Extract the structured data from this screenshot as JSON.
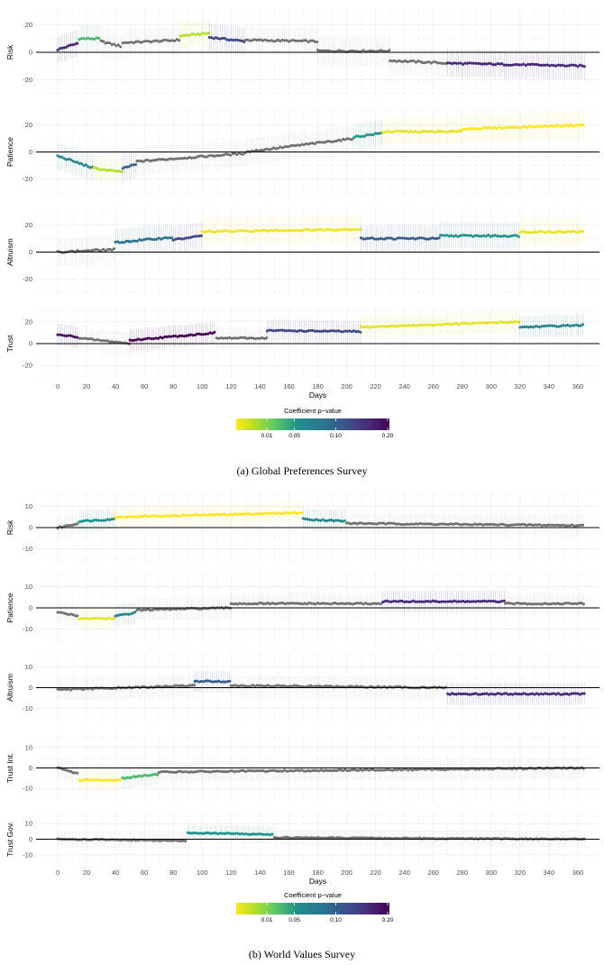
{
  "chart_data": [
    {
      "type": "scatter",
      "caption": "(a) Global Preferences Survey",
      "xlabel": "Days",
      "xticks": [
        0,
        20,
        40,
        60,
        80,
        100,
        120,
        140,
        160,
        180,
        200,
        220,
        240,
        260,
        280,
        300,
        320,
        340,
        360
      ],
      "xlim": [
        -15,
        375
      ],
      "colorbar": {
        "title": "Coefficient p−value",
        "ticks": [
          "0.01",
          "0.05",
          "0.10",
          "0.20"
        ],
        "tick_values": [
          0.01,
          0.05,
          0.1,
          0.2
        ],
        "significant_colors": [
          "#fde725",
          "#21918c",
          "#3b528b",
          "#440154"
        ],
        "non_significant_color": "#7a7a7a"
      },
      "panels": [
        {
          "ylabel": "Risk",
          "ylim": [
            -33,
            33
          ],
          "yticks": [
            -20,
            0,
            20
          ],
          "segments": [
            {
              "x0": 0,
              "x1": 15,
              "y0": 2,
              "y1": 7,
              "p": 0.15
            },
            {
              "x0": 15,
              "x1": 30,
              "y0": 10,
              "y1": 10,
              "p": 0.04
            },
            {
              "x0": 30,
              "x1": 45,
              "y0": 8,
              "y1": 4,
              "p": 0.25
            },
            {
              "x0": 45,
              "x1": 85,
              "y0": 7,
              "y1": 9,
              "p": 0.25
            },
            {
              "x0": 85,
              "x1": 105,
              "y0": 12,
              "y1": 14,
              "p": 0.02
            },
            {
              "x0": 105,
              "x1": 130,
              "y0": 11,
              "y1": 8,
              "p": 0.12
            },
            {
              "x0": 130,
              "x1": 180,
              "y0": 9,
              "y1": 8,
              "p": 0.25
            },
            {
              "x0": 180,
              "x1": 230,
              "y0": 1,
              "y1": 1,
              "p": 0.25
            },
            {
              "x0": 230,
              "x1": 270,
              "y0": -6,
              "y1": -8,
              "p": 0.25
            },
            {
              "x0": 270,
              "x1": 365,
              "y0": -8,
              "y1": -10,
              "p": 0.15
            }
          ]
        },
        {
          "ylabel": "Patience",
          "ylim": [
            -33,
            33
          ],
          "yticks": [
            -20,
            0,
            20
          ],
          "segments": [
            {
              "x0": 0,
              "x1": 25,
              "y0": -3,
              "y1": -12,
              "p": 0.06
            },
            {
              "x0": 25,
              "x1": 45,
              "y0": -12,
              "y1": -15,
              "p": 0.02
            },
            {
              "x0": 45,
              "x1": 55,
              "y0": -12,
              "y1": -9,
              "p": 0.1
            },
            {
              "x0": 55,
              "x1": 130,
              "y0": -7,
              "y1": -1,
              "p": 0.25
            },
            {
              "x0": 130,
              "x1": 205,
              "y0": 0,
              "y1": 10,
              "p": 0.25
            },
            {
              "x0": 205,
              "x1": 225,
              "y0": 11,
              "y1": 14,
              "p": 0.05
            },
            {
              "x0": 225,
              "x1": 280,
              "y0": 15,
              "y1": 15,
              "p": 0.01
            },
            {
              "x0": 280,
              "x1": 365,
              "y0": 17,
              "y1": 20,
              "p": 0.005
            }
          ]
        },
        {
          "ylabel": "Altruism",
          "ylim": [
            -33,
            33
          ],
          "yticks": [
            -20,
            0,
            20
          ],
          "segments": [
            {
              "x0": 0,
              "x1": 40,
              "y0": 0,
              "y1": 2,
              "p": 0.25
            },
            {
              "x0": 40,
              "x1": 80,
              "y0": 7,
              "y1": 11,
              "p": 0.08
            },
            {
              "x0": 80,
              "x1": 100,
              "y0": 9,
              "y1": 12,
              "p": 0.12
            },
            {
              "x0": 100,
              "x1": 210,
              "y0": 15,
              "y1": 17,
              "p": 0.008
            },
            {
              "x0": 210,
              "x1": 265,
              "y0": 10,
              "y1": 10,
              "p": 0.1
            },
            {
              "x0": 265,
              "x1": 320,
              "y0": 12,
              "y1": 12,
              "p": 0.05
            },
            {
              "x0": 320,
              "x1": 365,
              "y0": 15,
              "y1": 15,
              "p": 0.01
            }
          ]
        },
        {
          "ylabel": "Trust",
          "ylim": [
            -33,
            33
          ],
          "yticks": [
            -20,
            0,
            20
          ],
          "segments": [
            {
              "x0": 0,
              "x1": 15,
              "y0": 8,
              "y1": 6,
              "p": 0.18
            },
            {
              "x0": 15,
              "x1": 50,
              "y0": 5,
              "y1": 0,
              "p": 0.25
            },
            {
              "x0": 50,
              "x1": 110,
              "y0": 3,
              "y1": 10,
              "p": 0.2
            },
            {
              "x0": 110,
              "x1": 145,
              "y0": 5,
              "y1": 5,
              "p": 0.25
            },
            {
              "x0": 145,
              "x1": 210,
              "y0": 12,
              "y1": 11,
              "p": 0.12
            },
            {
              "x0": 210,
              "x1": 320,
              "y0": 15,
              "y1": 20,
              "p": 0.01
            },
            {
              "x0": 320,
              "x1": 365,
              "y0": 15,
              "y1": 17,
              "p": 0.06
            }
          ]
        }
      ]
    },
    {
      "type": "scatter",
      "caption": "(b) World Values Survey",
      "xlabel": "Days",
      "xticks": [
        0,
        20,
        40,
        60,
        80,
        100,
        120,
        140,
        160,
        180,
        200,
        220,
        240,
        260,
        280,
        300,
        320,
        340,
        360
      ],
      "xlim": [
        -15,
        375
      ],
      "colorbar": {
        "title": "Coefficient p−value",
        "ticks": [
          "0.01",
          "0.05",
          "0.10",
          "0.20"
        ],
        "tick_values": [
          0.01,
          0.05,
          0.1,
          0.2
        ],
        "significant_colors": [
          "#fde725",
          "#21918c",
          "#3b528b",
          "#440154"
        ],
        "non_significant_color": "#7a7a7a"
      },
      "panels": [
        {
          "ylabel": "Risk",
          "ylim": [
            -17,
            17
          ],
          "yticks": [
            -10,
            0,
            10
          ],
          "segments": [
            {
              "x0": 0,
              "x1": 15,
              "y0": 0,
              "y1": 2,
              "p": 0.25
            },
            {
              "x0": 15,
              "x1": 40,
              "y0": 3,
              "y1": 4,
              "p": 0.05
            },
            {
              "x0": 40,
              "x1": 170,
              "y0": 5,
              "y1": 7,
              "p": 0.005
            },
            {
              "x0": 170,
              "x1": 200,
              "y0": 4,
              "y1": 3,
              "p": 0.06
            },
            {
              "x0": 200,
              "x1": 365,
              "y0": 2,
              "y1": 1,
              "p": 0.25
            }
          ]
        },
        {
          "ylabel": "Patience",
          "ylim": [
            -17,
            17
          ],
          "yticks": [
            -10,
            0,
            10
          ],
          "segments": [
            {
              "x0": 0,
              "x1": 15,
              "y0": -2,
              "y1": -4,
              "p": 0.25
            },
            {
              "x0": 15,
              "x1": 40,
              "y0": -5,
              "y1": -5,
              "p": 0.01
            },
            {
              "x0": 40,
              "x1": 55,
              "y0": -4,
              "y1": -2,
              "p": 0.06
            },
            {
              "x0": 55,
              "x1": 120,
              "y0": -1,
              "y1": 0,
              "p": 0.25
            },
            {
              "x0": 120,
              "x1": 225,
              "y0": 2,
              "y1": 2,
              "p": 0.25
            },
            {
              "x0": 225,
              "x1": 310,
              "y0": 3,
              "y1": 3,
              "p": 0.15
            },
            {
              "x0": 310,
              "x1": 365,
              "y0": 2,
              "y1": 2,
              "p": 0.25
            }
          ]
        },
        {
          "ylabel": "Altruism",
          "ylim": [
            -17,
            17
          ],
          "yticks": [
            -10,
            0,
            10
          ],
          "segments": [
            {
              "x0": 0,
              "x1": 95,
              "y0": -1,
              "y1": 1,
              "p": 0.25
            },
            {
              "x0": 95,
              "x1": 120,
              "y0": 3,
              "y1": 3,
              "p": 0.1
            },
            {
              "x0": 120,
              "x1": 270,
              "y0": 1,
              "y1": 0,
              "p": 0.25
            },
            {
              "x0": 270,
              "x1": 365,
              "y0": -3,
              "y1": -3,
              "p": 0.15
            }
          ]
        },
        {
          "ylabel": "Trust Int.",
          "ylim": [
            -17,
            17
          ],
          "yticks": [
            -10,
            0,
            10
          ],
          "segments": [
            {
              "x0": 0,
              "x1": 15,
              "y0": 0,
              "y1": -3,
              "p": 0.25
            },
            {
              "x0": 15,
              "x1": 45,
              "y0": -6,
              "y1": -6,
              "p": 0.005
            },
            {
              "x0": 45,
              "x1": 70,
              "y0": -5,
              "y1": -3,
              "p": 0.04
            },
            {
              "x0": 70,
              "x1": 365,
              "y0": -2,
              "y1": 0,
              "p": 0.25
            }
          ]
        },
        {
          "ylabel": "Trust Gov.",
          "ylim": [
            -17,
            17
          ],
          "yticks": [
            -10,
            0,
            10
          ],
          "segments": [
            {
              "x0": 0,
              "x1": 90,
              "y0": 0,
              "y1": -1,
              "p": 0.25
            },
            {
              "x0": 90,
              "x1": 150,
              "y0": 4,
              "y1": 3,
              "p": 0.05
            },
            {
              "x0": 150,
              "x1": 365,
              "y0": 1,
              "y1": 0,
              "p": 0.25
            }
          ]
        }
      ]
    }
  ]
}
